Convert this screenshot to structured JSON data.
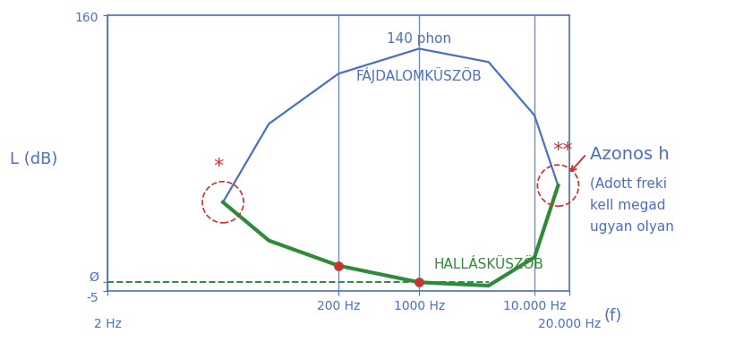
{
  "chart_data": {
    "type": "line",
    "y_label": "L (dB)",
    "x_label": "(f)",
    "x": [
      20,
      50,
      200,
      1000,
      4000,
      10000,
      16000
    ],
    "series": [
      {
        "name": "FÁJDALOMKÜSZÖB",
        "color": "#4a6fc4",
        "values": [
          48,
          95,
          125,
          140,
          132,
          100,
          58
        ]
      },
      {
        "name": "HALLÁSKÜSZÖB",
        "color": "#2e8b3a",
        "values": [
          48,
          25,
          10,
          0,
          -2,
          15,
          58
        ]
      }
    ],
    "points": {
      "x": [
        200,
        1000
      ],
      "values": [
        10,
        0
      ],
      "color": "#c0392b"
    },
    "log": "x",
    "xlim": [
      2,
      20000
    ],
    "xticks": [
      {
        "value": 2,
        "label": "2 Hz"
      },
      {
        "value": 200,
        "label": "200 Hz"
      },
      {
        "value": 1000,
        "label": "1000 Hz"
      },
      {
        "value": 10000,
        "label": "10.000 Hz"
      },
      {
        "value": 20000,
        "label": "20.000 Hz"
      }
    ],
    "ylim": [
      -5,
      160
    ],
    "yticks": [
      -5,
      {
        "value": 0,
        "label": "Ø"
      },
      160
    ],
    "grid": true,
    "annotations": [
      "140 phon",
      "*",
      "**"
    ],
    "side_note": [
      "Azonos h",
      "(Adott freki",
      "kell megad",
      "ugyan olyan"
    ],
    "annotation_color": "#d03030"
  }
}
